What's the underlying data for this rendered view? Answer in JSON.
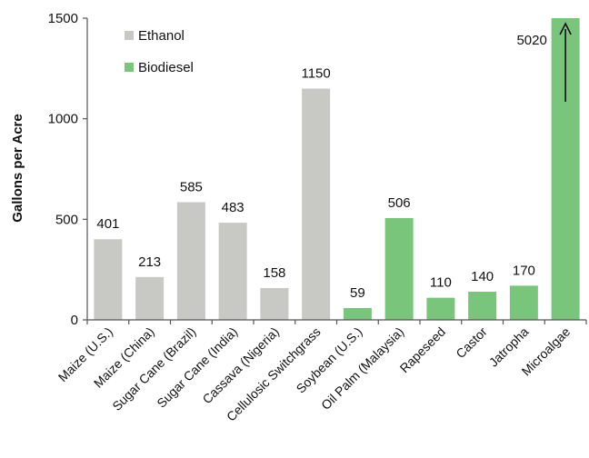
{
  "chart_data": {
    "type": "bar",
    "ylabel": "Gallons per Acre",
    "xlabel": "",
    "ylim": [
      0,
      1500
    ],
    "yticks": [
      0,
      500,
      1000,
      1500
    ],
    "grid": false,
    "legend_position": "top-left",
    "series": [
      {
        "name": "Ethanol",
        "color": "#c8c8c4"
      },
      {
        "name": "Biodiesel",
        "color": "#7ac57c"
      }
    ],
    "categories": [
      "Maize (U.S.)",
      "Maize (China)",
      "Sugar Cane (Brazil)",
      "Sugar Cane (India)",
      "Cassava (Nigeria)",
      "Cellulosic Switchgrass",
      "Soybean (U.S.)",
      "Oil Palm (Malaysia)",
      "Rapeseed",
      "Castor",
      "Jatropha",
      "Microalgae"
    ],
    "values": [
      401,
      213,
      585,
      483,
      158,
      1150,
      59,
      506,
      110,
      140,
      170,
      5020
    ],
    "value_labels": [
      "401",
      "213",
      "585",
      "483",
      "158",
      "1150",
      "59",
      "506",
      "110",
      "140",
      "170",
      "5020"
    ],
    "bar_series": [
      0,
      0,
      0,
      0,
      0,
      0,
      1,
      1,
      1,
      1,
      1,
      1
    ],
    "annotations": [
      "Microalgae bar exceeds axis (up arrow)"
    ]
  }
}
